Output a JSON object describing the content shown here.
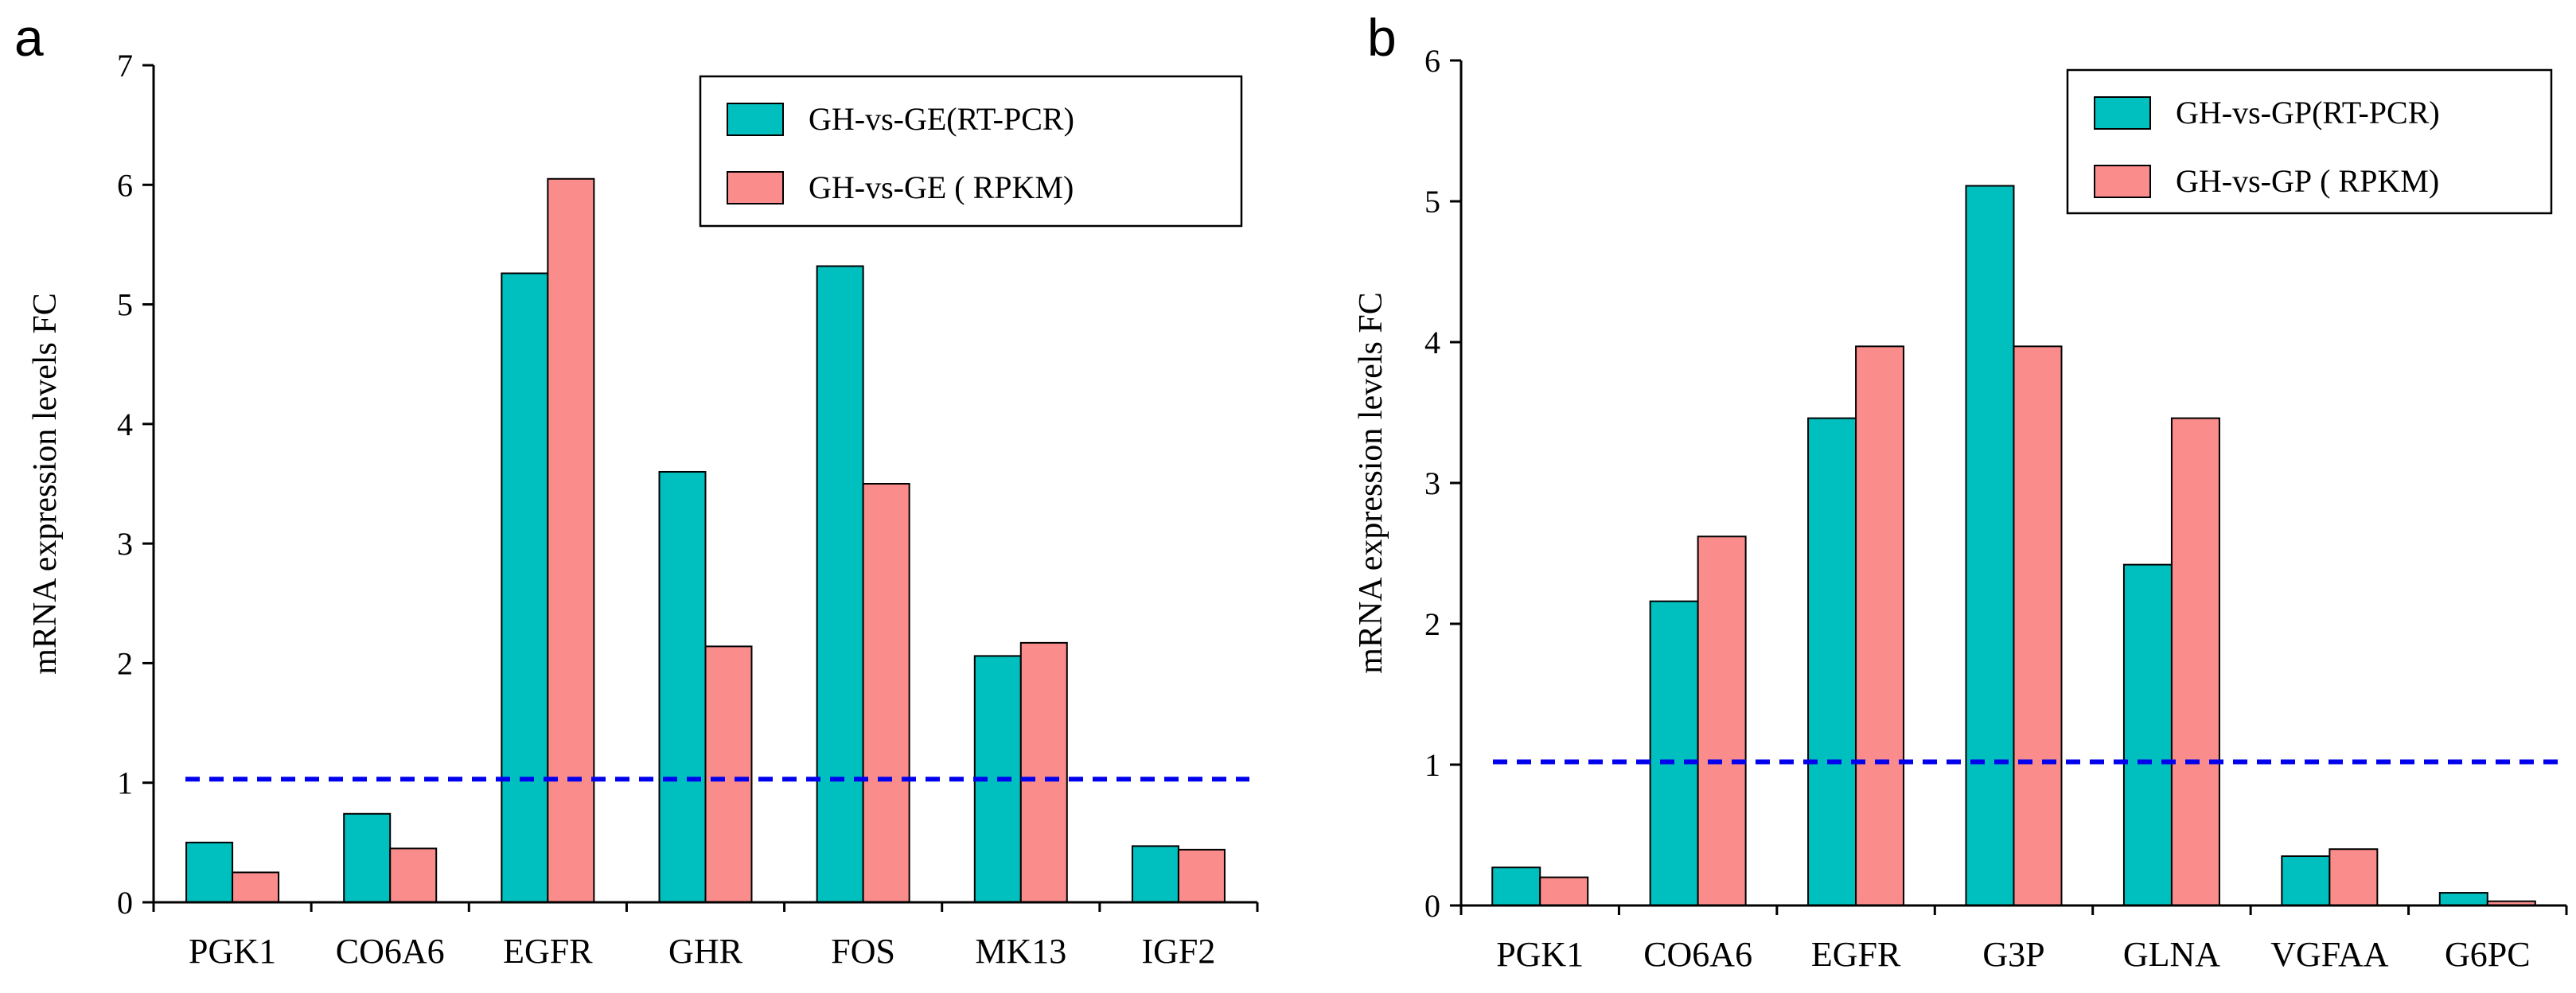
{
  "chart_data": [
    {
      "type": "bar",
      "panel_label": "a",
      "categories": [
        "PGK1",
        "CO6A6",
        "EGFR",
        "GHR",
        "FOS",
        "MK13",
        "IGF2"
      ],
      "series": [
        {
          "name": "GH-vs-GE(RT-PCR)",
          "color": "#00BFBF",
          "values": [
            0.5,
            0.74,
            5.26,
            3.6,
            5.32,
            2.06,
            0.47
          ]
        },
        {
          "name": "GH-vs-GE ( RPKM)",
          "color": "#FA8C8C",
          "values": [
            0.25,
            0.45,
            6.05,
            2.14,
            3.5,
            2.17,
            0.44
          ]
        }
      ],
      "ylabel": "mRNA expression levels  FC",
      "xlabel": "",
      "ylim": [
        0,
        7
      ],
      "yticks": [
        "0",
        "1",
        "2",
        "3",
        "4",
        "5",
        "6",
        "7"
      ],
      "reference_line": {
        "value": 1.03,
        "color": "#0000EE",
        "style": "dashed"
      },
      "legend_position": "top-right"
    },
    {
      "type": "bar",
      "panel_label": "b",
      "categories": [
        "PGK1",
        "CO6A6",
        "EGFR",
        "G3P",
        "GLNA",
        "VGFAA",
        "G6PC"
      ],
      "series": [
        {
          "name": "GH-vs-GP(RT-PCR)",
          "color": "#00BFBF",
          "values": [
            0.27,
            2.16,
            3.46,
            5.11,
            2.42,
            0.35,
            0.09
          ]
        },
        {
          "name": "GH-vs-GP ( RPKM)",
          "color": "#FA8C8C",
          "values": [
            0.2,
            2.62,
            3.97,
            3.97,
            3.46,
            0.4,
            0.03
          ]
        }
      ],
      "ylabel": "mRNA expression levels  FC",
      "xlabel": "",
      "ylim": [
        0,
        6
      ],
      "yticks": [
        "0",
        "1",
        "2",
        "3",
        "4",
        "5",
        "6"
      ],
      "reference_line": {
        "value": 1.02,
        "color": "#0000EE",
        "style": "dashed"
      },
      "legend_position": "top-right"
    }
  ]
}
